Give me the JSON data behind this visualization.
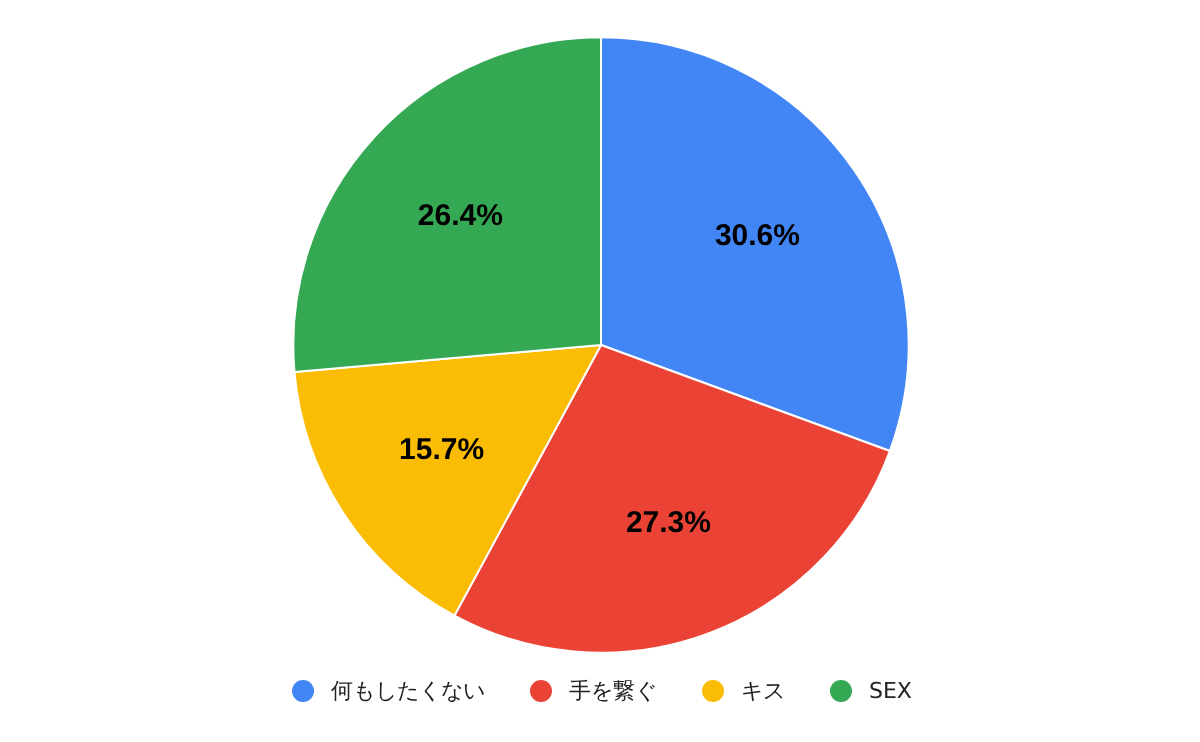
{
  "chart_data": {
    "type": "pie",
    "categories": [
      "何もしたくない",
      "手を繋ぐ",
      "キス",
      "SEX"
    ],
    "values": [
      30.6,
      27.3,
      15.7,
      26.4
    ],
    "colors": [
      "#4285f4",
      "#ea4335",
      "#fbbc04",
      "#34a853"
    ],
    "value_labels": [
      "30.6%",
      "27.3%",
      "15.7%",
      "26.4%"
    ],
    "legend": "bottom"
  }
}
